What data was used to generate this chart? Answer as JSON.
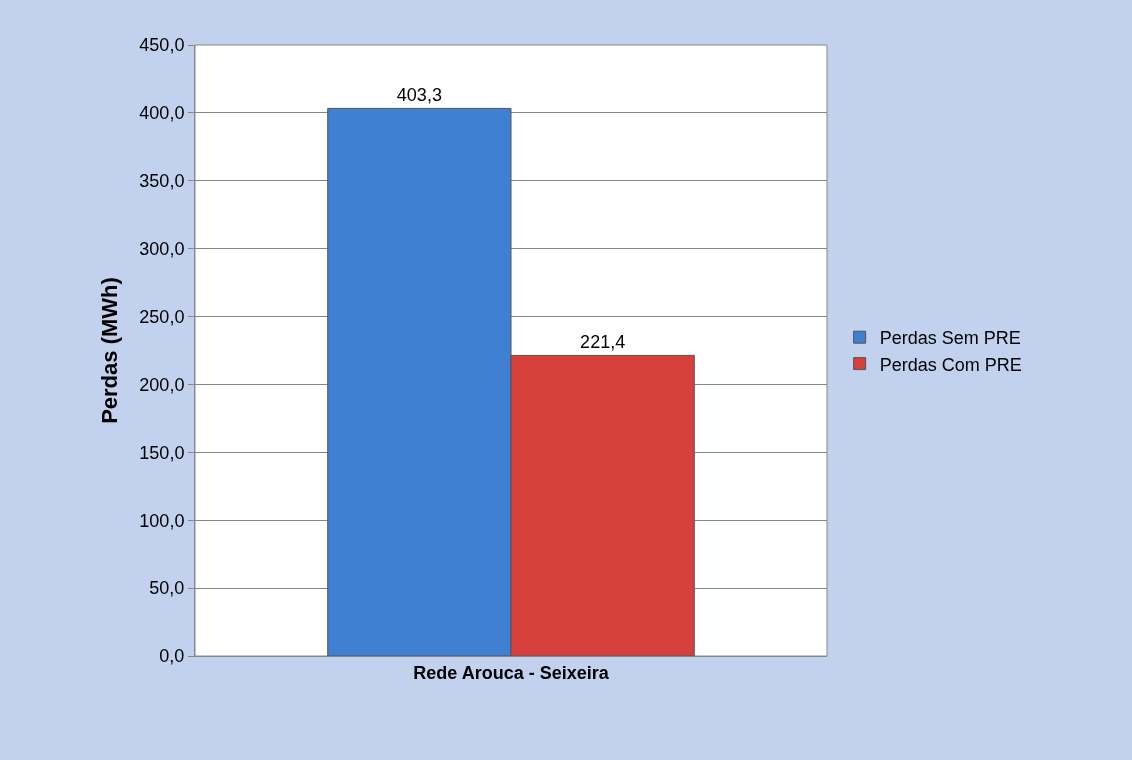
{
  "chart_data": {
    "type": "bar",
    "ylabel": "Perdas (MWh)",
    "categories": [
      "Rede Arouca - Seixeira"
    ],
    "series": [
      {
        "name": "Perdas Sem PRE",
        "color": "#3f80d2",
        "values": [
          403.3
        ],
        "value_labels": [
          "403,3"
        ]
      },
      {
        "name": "Perdas Com PRE",
        "color": "#d5403c",
        "values": [
          221.4
        ],
        "value_labels": [
          "221,4"
        ]
      }
    ],
    "ylim": [
      0,
      450
    ],
    "yticks": [
      {
        "value": 0,
        "label": "0,0"
      },
      {
        "value": 50,
        "label": "50,0"
      },
      {
        "value": 100,
        "label": "100,0"
      },
      {
        "value": 150,
        "label": "150,0"
      },
      {
        "value": 200,
        "label": "200,0"
      },
      {
        "value": 250,
        "label": "250,0"
      },
      {
        "value": 300,
        "label": "300,0"
      },
      {
        "value": 350,
        "label": "350,0"
      },
      {
        "value": 400,
        "label": "400,0"
      },
      {
        "value": 450,
        "label": "450,0"
      }
    ],
    "grid": "y",
    "legend": "right"
  }
}
